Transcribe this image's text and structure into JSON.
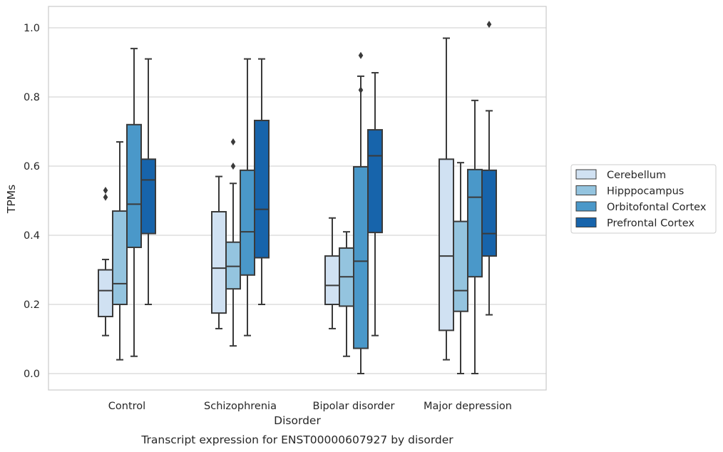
{
  "caption": "Transcript expression for ENST00000607927 by disorder",
  "chart_data": {
    "type": "box",
    "title": "",
    "xlabel": "Disorder",
    "ylabel": "TPMs",
    "ylim": [
      -0.05,
      1.06
    ],
    "yticks": [
      0.0,
      0.2,
      0.4,
      0.6,
      0.8,
      1.0
    ],
    "ytick_labels": [
      "0.0",
      "0.2",
      "0.4",
      "0.6",
      "0.8",
      "1.0"
    ],
    "grid": "horizontal",
    "legend_position": "right",
    "categories": [
      "Control",
      "Schizophrenia",
      "Bipolar disorder",
      "Major depression"
    ],
    "series": [
      {
        "name": "Cerebellum",
        "color": "#d0e1f2",
        "boxes": [
          {
            "whisker_low": 0.11,
            "q1": 0.165,
            "median": 0.24,
            "q3": 0.3,
            "whisker_high": 0.33,
            "outliers": [
              0.51,
              0.53
            ]
          },
          {
            "whisker_low": 0.13,
            "q1": 0.175,
            "median": 0.305,
            "q3": 0.468,
            "whisker_high": 0.57,
            "outliers": []
          },
          {
            "whisker_low": 0.13,
            "q1": 0.2,
            "median": 0.255,
            "q3": 0.34,
            "whisker_high": 0.45,
            "outliers": []
          },
          {
            "whisker_low": 0.04,
            "q1": 0.125,
            "median": 0.34,
            "q3": 0.62,
            "whisker_high": 0.97,
            "outliers": []
          }
        ]
      },
      {
        "name": "Hipppocampus",
        "color": "#94c4df",
        "boxes": [
          {
            "whisker_low": 0.04,
            "q1": 0.2,
            "median": 0.26,
            "q3": 0.47,
            "whisker_high": 0.67,
            "outliers": []
          },
          {
            "whisker_low": 0.08,
            "q1": 0.245,
            "median": 0.31,
            "q3": 0.38,
            "whisker_high": 0.55,
            "outliers": [
              0.6,
              0.67
            ]
          },
          {
            "whisker_low": 0.05,
            "q1": 0.195,
            "median": 0.28,
            "q3": 0.363,
            "whisker_high": 0.41,
            "outliers": []
          },
          {
            "whisker_low": 0.0,
            "q1": 0.18,
            "median": 0.24,
            "q3": 0.44,
            "whisker_high": 0.61,
            "outliers": []
          }
        ]
      },
      {
        "name": "Orbitofontal Cortex",
        "color": "#4a98c9",
        "boxes": [
          {
            "whisker_low": 0.05,
            "q1": 0.365,
            "median": 0.49,
            "q3": 0.72,
            "whisker_high": 0.94,
            "outliers": []
          },
          {
            "whisker_low": 0.11,
            "q1": 0.285,
            "median": 0.41,
            "q3": 0.588,
            "whisker_high": 0.91,
            "outliers": []
          },
          {
            "whisker_low": 0.0,
            "q1": 0.073,
            "median": 0.325,
            "q3": 0.598,
            "whisker_high": 0.86,
            "outliers": [
              0.82,
              0.92
            ]
          },
          {
            "whisker_low": 0.0,
            "q1": 0.28,
            "median": 0.51,
            "q3": 0.59,
            "whisker_high": 0.79,
            "outliers": []
          }
        ]
      },
      {
        "name": "Prefrontal Cortex",
        "color": "#1764ab",
        "boxes": [
          {
            "whisker_low": 0.2,
            "q1": 0.405,
            "median": 0.56,
            "q3": 0.62,
            "whisker_high": 0.91,
            "outliers": []
          },
          {
            "whisker_low": 0.2,
            "q1": 0.335,
            "median": 0.475,
            "q3": 0.732,
            "whisker_high": 0.91,
            "outliers": []
          },
          {
            "whisker_low": 0.11,
            "q1": 0.408,
            "median": 0.63,
            "q3": 0.705,
            "whisker_high": 0.87,
            "outliers": []
          },
          {
            "whisker_low": 0.17,
            "q1": 0.34,
            "median": 0.405,
            "q3": 0.588,
            "whisker_high": 0.76,
            "outliers": [
              1.01
            ]
          }
        ]
      }
    ]
  }
}
